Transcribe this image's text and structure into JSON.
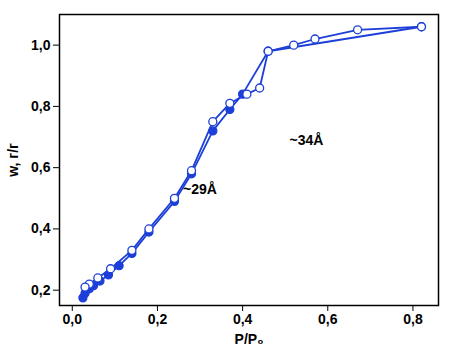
{
  "chart_data": {
    "type": "line",
    "x_label": "P/P₀",
    "y_label": "w, г/г",
    "xlim": [
      -0.03,
      0.86
    ],
    "ylim": [
      0.15,
      1.1
    ],
    "xticks": [
      {
        "value": 0,
        "label": "0,0"
      },
      {
        "value": 0.2,
        "label": "0,2"
      },
      {
        "value": 0.4,
        "label": "0,4"
      },
      {
        "value": 0.6,
        "label": "0,6"
      },
      {
        "value": 0.8,
        "label": "0,8"
      }
    ],
    "yticks": [
      {
        "value": 0.2,
        "label": "0,2"
      },
      {
        "value": 0.4,
        "label": "0,4"
      },
      {
        "value": 0.6,
        "label": "0,6"
      },
      {
        "value": 0.8,
        "label": "0,8"
      },
      {
        "value": 1.0,
        "label": "1,0"
      }
    ],
    "grid": false,
    "series": [
      {
        "color": "#1c3fd8",
        "marker": "circle",
        "line_style": "solid",
        "x": [
          0.025,
          0.03,
          0.04,
          0.05,
          0.065,
          0.085,
          0.11,
          0.14,
          0.18,
          0.24,
          0.28,
          0.33,
          0.37,
          0.4,
          0.46,
          0.82
        ],
        "values": [
          0.175,
          0.19,
          0.205,
          0.215,
          0.23,
          0.25,
          0.28,
          0.32,
          0.39,
          0.49,
          0.58,
          0.72,
          0.79,
          0.84,
          0.98,
          1.06
        ]
      },
      {
        "color": "#1c3fd8",
        "marker": "open_circle",
        "line_style": "solid",
        "x": [
          0.82,
          0.67,
          0.57,
          0.52,
          0.46,
          0.44,
          0.41,
          0.37,
          0.33,
          0.28,
          0.24,
          0.18,
          0.14,
          0.09,
          0.06,
          0.04,
          0.03
        ],
        "values": [
          1.06,
          1.05,
          1.02,
          1.0,
          0.98,
          0.86,
          0.84,
          0.81,
          0.75,
          0.59,
          0.5,
          0.4,
          0.33,
          0.27,
          0.24,
          0.22,
          0.21
        ]
      }
    ],
    "annotations": [
      {
        "text": "~29Å",
        "x": 0.3,
        "y": 0.53
      },
      {
        "text": "~34Å",
        "x": 0.55,
        "y": 0.69
      }
    ]
  }
}
